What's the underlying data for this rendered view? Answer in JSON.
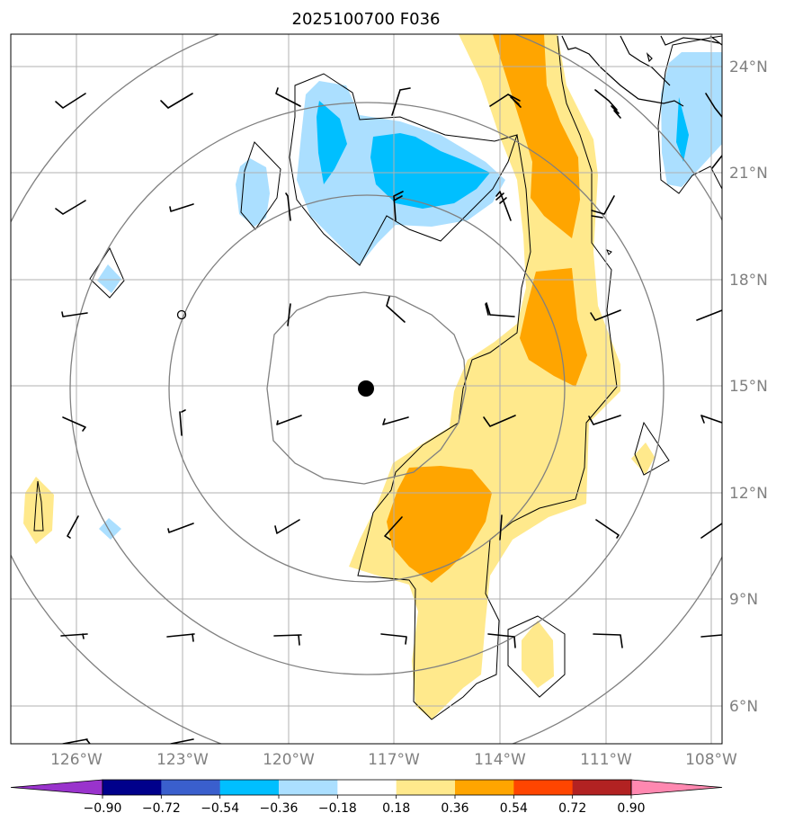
{
  "title": "2025100700 F036",
  "lat_labels": [
    "24°N",
    "21°N",
    "18°N",
    "15°N",
    "12°N",
    "9°N",
    "6°N"
  ],
  "lon_labels": [
    "126°W",
    "123°W",
    "120°W",
    "117°W",
    "114°W",
    "111°W",
    "108°W"
  ],
  "colorbar": {
    "ticks": [
      "−0.90",
      "−0.72",
      "−0.54",
      "−0.36",
      "−0.18",
      "0.18",
      "0.36",
      "0.54",
      "0.72",
      "0.90"
    ],
    "colors": [
      "#9933cc",
      "#00008b",
      "#3a5fcd",
      "#00bfff",
      "#abdfff",
      "#ffffff",
      "#ffe98c",
      "#ffa500",
      "#ff4500",
      "#b22222",
      "#ff88b0"
    ]
  },
  "colors": {
    "light_blue": "#abdfff",
    "blue": "#00bfff",
    "light_yellow": "#ffe98c",
    "orange": "#ffa500",
    "grid": "#b0b0b0",
    "range_rings": "#808080"
  },
  "storm_center": {
    "lat": 15.0,
    "lon": -117.8
  },
  "range_rings_count": 4
}
